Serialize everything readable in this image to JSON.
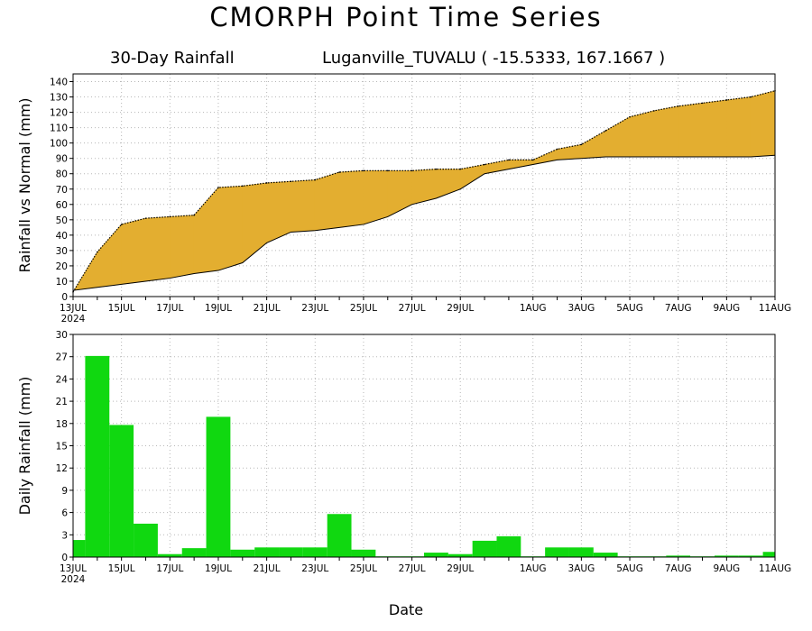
{
  "title": "CMORPH Point Time Series",
  "subtitle_left": "30-Day Rainfall",
  "subtitle_right": "Luganville_TUVALU ( -15.5333, 167.1667 )",
  "xlabel": "Date",
  "colors": {
    "below_normal": "#2a40f0",
    "above_normal": "#e3ae30",
    "daily_bars": "#10d810",
    "grid": "#b8b8b8",
    "axis": "#000000"
  },
  "x_ticks": [
    {
      "day": 0,
      "label": "13JUL",
      "sub": "2024"
    },
    {
      "day": 2,
      "label": "15JUL"
    },
    {
      "day": 4,
      "label": "17JUL"
    },
    {
      "day": 6,
      "label": "19JUL"
    },
    {
      "day": 8,
      "label": "21JUL"
    },
    {
      "day": 10,
      "label": "23JUL"
    },
    {
      "day": 12,
      "label": "25JUL"
    },
    {
      "day": 14,
      "label": "27JUL"
    },
    {
      "day": 16,
      "label": "29JUL"
    },
    {
      "day": 19,
      "label": "1AUG"
    },
    {
      "day": 21,
      "label": "3AUG"
    },
    {
      "day": 23,
      "label": "5AUG"
    },
    {
      "day": 25,
      "label": "7AUG"
    },
    {
      "day": 27,
      "label": "9AUG"
    },
    {
      "day": 29,
      "label": "11AUG"
    }
  ],
  "chart_data": [
    {
      "type": "area",
      "ylabel": "Rainfall vs Normal (mm)",
      "ylim": [
        0,
        145
      ],
      "yticks": [
        0,
        10,
        20,
        30,
        40,
        50,
        60,
        70,
        80,
        90,
        100,
        110,
        120,
        130,
        140
      ],
      "grid": true,
      "series": [
        {
          "values": [
            3,
            29,
            47,
            51,
            52,
            53,
            71,
            72,
            74,
            75,
            76,
            81,
            82,
            82,
            82,
            83,
            83,
            86,
            89,
            89,
            96,
            99,
            108,
            117,
            121,
            124,
            126,
            128,
            130,
            134
          ]
        },
        {
          "values": [
            4,
            6,
            8,
            10,
            12,
            15,
            17,
            22,
            35,
            42,
            43,
            45,
            47,
            52,
            60,
            64,
            70,
            80,
            83,
            86,
            89,
            90,
            91,
            91,
            91,
            91,
            91,
            91,
            91,
            92
          ]
        }
      ]
    },
    {
      "type": "bar",
      "ylabel": "Daily Rainfall (mm)",
      "ylim": [
        0,
        30
      ],
      "yticks": [
        0,
        3,
        6,
        9,
        12,
        15,
        18,
        21,
        24,
        27,
        30
      ],
      "grid": true,
      "values": [
        2.3,
        27.1,
        17.8,
        4.5,
        0.4,
        1.2,
        18.9,
        1.0,
        1.3,
        1.3,
        1.3,
        5.8,
        1.0,
        0.1,
        0.1,
        0.6,
        0.4,
        2.2,
        2.8,
        0.1,
        1.3,
        1.3,
        0.6,
        0.1,
        0.1,
        0.2,
        0.1,
        0.2,
        0.2,
        0.7
      ]
    }
  ]
}
